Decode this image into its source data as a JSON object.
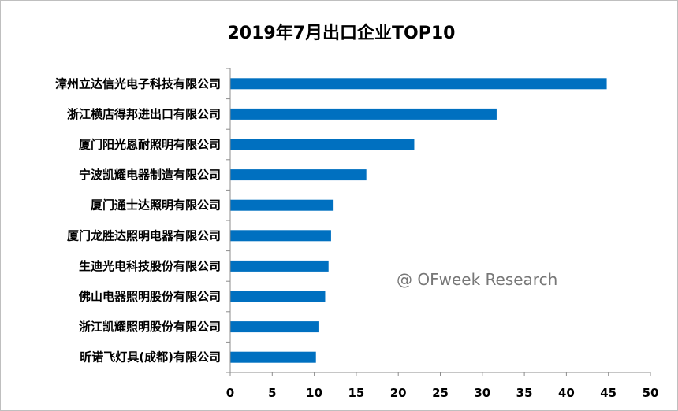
{
  "chart_data": {
    "type": "bar",
    "orientation": "horizontal",
    "title": "2019年7月出口企业TOP10",
    "xlabel": "",
    "ylabel": "",
    "xlim": [
      0,
      50
    ],
    "ticks": [
      "0",
      "5",
      "10",
      "15",
      "20",
      "25",
      "30",
      "35",
      "40",
      "45",
      "50"
    ],
    "grid": false,
    "legend": "none",
    "bar_color": "#0070c0",
    "categories": [
      "漳州立达信光电子科技有限公司",
      "浙江横店得邦进出口有限公司",
      "厦门阳光恩耐照明有限公司",
      "宁波凯耀电器制造有限公司",
      "厦门通士达照明有限公司",
      "厦门龙胜达照明电器有限公司",
      "生迪光电科技股份有限公司",
      "佛山电器照明股份有限公司",
      "浙江凯耀照明股份有限公司",
      "昕诺飞灯具(成都)有限公司"
    ],
    "values": [
      44.8,
      31.7,
      21.9,
      16.2,
      12.3,
      12.0,
      11.7,
      11.3,
      10.5,
      10.2
    ],
    "annotation": "@ OFweek Research"
  }
}
